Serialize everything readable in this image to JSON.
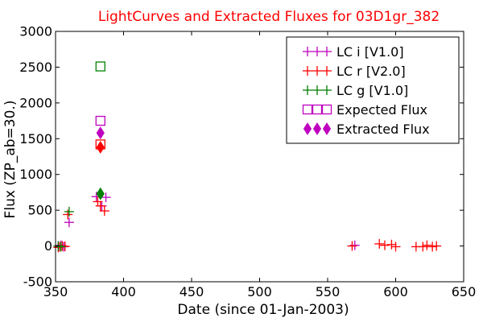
{
  "chart_data": {
    "type": "scatter",
    "title": "LightCurves and Extracted Fluxes for 03D1gr_382",
    "title_color": "#ff0000",
    "xlabel": "Date (since 01-Jan-2003)",
    "ylabel": "Flux (ZP_ab=30.)",
    "xlim": [
      350,
      650
    ],
    "ylim": [
      -500,
      3000
    ],
    "xticks": [
      350,
      400,
      450,
      500,
      550,
      600,
      650
    ],
    "yticks": [
      -500,
      0,
      500,
      1000,
      1500,
      2000,
      2500,
      3000
    ],
    "grid": false,
    "legend_position": "top-right",
    "series": [
      {
        "name": "LC i [V1.0]",
        "marker": "plus",
        "color": "#bf00bf",
        "points": [
          [
            352,
            0
          ],
          [
            354,
            10
          ],
          [
            356,
            -10
          ],
          [
            360,
            330
          ],
          [
            380,
            690
          ],
          [
            384,
            560
          ],
          [
            387,
            680
          ],
          [
            570,
            10
          ]
        ]
      },
      {
        "name": "LC r [V2.0]",
        "marker": "plus",
        "color": "#ff0000",
        "points": [
          [
            352,
            -20
          ],
          [
            353,
            -10
          ],
          [
            355,
            0
          ],
          [
            357,
            -5
          ],
          [
            359,
            440
          ],
          [
            381,
            620
          ],
          [
            383,
            560
          ],
          [
            386,
            490
          ],
          [
            568,
            0
          ],
          [
            588,
            30
          ],
          [
            592,
            10
          ],
          [
            597,
            20
          ],
          [
            600,
            -10
          ],
          [
            615,
            -10
          ],
          [
            620,
            -10
          ],
          [
            623,
            10
          ],
          [
            627,
            -10
          ],
          [
            630,
            0
          ]
        ]
      },
      {
        "name": "LC g [V1.0]",
        "marker": "plus",
        "color": "#008000",
        "points": [
          [
            352,
            0
          ],
          [
            354,
            -10
          ],
          [
            360,
            480
          ]
        ]
      },
      {
        "name": "Expected Flux",
        "marker": "square-open",
        "color": "#bf00bf",
        "points": [
          [
            383,
            1750
          ]
        ],
        "extra": [
          {
            "color": "#ff0000",
            "points": [
              [
                383,
                1420
              ]
            ]
          },
          {
            "color": "#008000",
            "points": [
              [
                383,
                2510
              ]
            ]
          }
        ]
      },
      {
        "name": "Extracted Flux",
        "marker": "diamond",
        "color": "#bf00bf",
        "points": [
          [
            383,
            1580
          ]
        ],
        "extra": [
          {
            "color": "#ff0000",
            "points": [
              [
                383,
                1380
              ]
            ]
          },
          {
            "color": "#008000",
            "points": [
              [
                383,
                730
              ]
            ]
          }
        ]
      }
    ]
  }
}
